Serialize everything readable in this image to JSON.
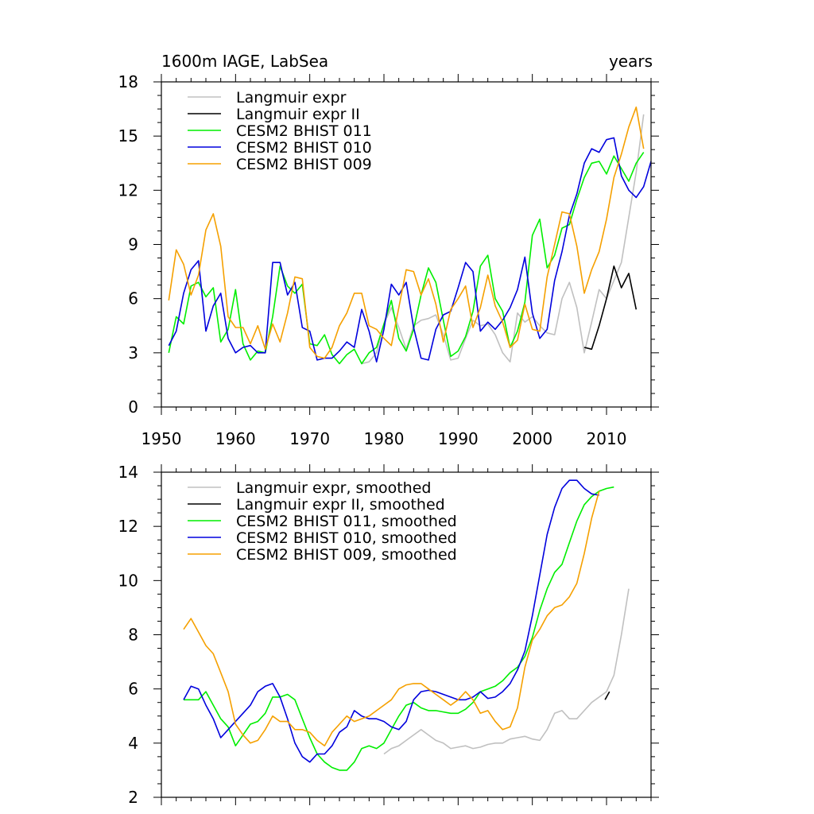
{
  "chart_data": [
    {
      "type": "line",
      "title_left": "1600m IAGE, LabSea",
      "title_right": "years",
      "xlim": [
        1950,
        2016
      ],
      "ylim": [
        0,
        18
      ],
      "xticks": [
        1950,
        1960,
        1970,
        1980,
        1990,
        2000,
        2010
      ],
      "yticks": [
        0,
        3,
        6,
        9,
        12,
        15,
        18
      ],
      "tick_labels_x": [
        "1950",
        "1960",
        "1970",
        "1980",
        "1990",
        "2000",
        "2010"
      ],
      "tick_labels_y": [
        "0",
        "3",
        "6",
        "9",
        "12",
        "15",
        "18"
      ],
      "series": [
        {
          "name": "Langmuir expr",
          "color": "#c0c0c0",
          "x0": 1977,
          "values": [
            2.4,
            2.5,
            3.0,
            4.6,
            5.5,
            4.4,
            3.2,
            4.5,
            4.8,
            4.9,
            5.1,
            4.0,
            2.6,
            2.7,
            3.8,
            4.8,
            4.5,
            4.6,
            4.0,
            3.0,
            2.5,
            5.2,
            4.7,
            5.0,
            4.5,
            4.1,
            4.0,
            6.0,
            6.9,
            5.5,
            3.0,
            4.7,
            6.5,
            6.0,
            7.0,
            8.0,
            10.5,
            13.0,
            16.2
          ]
        },
        {
          "name": "Langmuir expr II",
          "color": "#000000",
          "x0": 2007,
          "values": [
            3.3,
            3.2,
            4.5,
            6.0,
            7.8,
            6.6,
            7.4,
            5.4
          ]
        },
        {
          "name": "CESM2 BHIST 011",
          "color": "#00ee00",
          "x0": 1951,
          "values": [
            3.0,
            5.0,
            4.6,
            6.7,
            6.9,
            6.1,
            6.6,
            3.6,
            4.3,
            6.5,
            3.5,
            2.6,
            3.1,
            3.0,
            5.0,
            7.8,
            6.7,
            6.3,
            6.8,
            3.5,
            3.4,
            4.0,
            2.9,
            2.4,
            2.9,
            3.2,
            2.4,
            3.0,
            3.3,
            4.6,
            5.9,
            3.8,
            3.1,
            4.3,
            6.2,
            7.7,
            6.9,
            4.8,
            2.8,
            3.1,
            3.9,
            5.3,
            7.8,
            8.4,
            6.0,
            5.3,
            3.3,
            4.2,
            5.8,
            9.5,
            10.4,
            7.7,
            8.4,
            9.9,
            10.1,
            11.5,
            12.7,
            13.5,
            13.6,
            12.9,
            13.9,
            13.2,
            12.5,
            13.5,
            14.1
          ]
        },
        {
          "name": "CESM2 BHIST 010",
          "color": "#0000dd",
          "x0": 1951,
          "values": [
            3.4,
            4.2,
            6.3,
            7.6,
            8.1,
            4.2,
            5.6,
            6.3,
            3.8,
            3.0,
            3.3,
            3.4,
            3.0,
            3.0,
            8.0,
            8.0,
            6.2,
            6.9,
            4.4,
            4.2,
            2.6,
            2.7,
            2.7,
            3.1,
            3.6,
            3.3,
            5.4,
            4.2,
            2.5,
            4.3,
            6.8,
            6.2,
            6.9,
            4.4,
            2.7,
            2.6,
            4.3,
            5.1,
            5.3,
            6.6,
            8.0,
            7.5,
            4.2,
            4.7,
            4.3,
            4.8,
            5.5,
            6.5,
            8.3,
            5.2,
            3.8,
            4.3,
            7.0,
            8.6,
            10.6,
            11.8,
            13.5,
            14.3,
            14.1,
            14.8,
            14.9,
            12.8,
            12.0,
            11.6,
            12.2,
            13.6
          ]
        },
        {
          "name": "CESM2 BHIST 009",
          "color": "#f5a000",
          "x0": 1951,
          "values": [
            5.9,
            8.7,
            7.9,
            6.2,
            7.3,
            9.8,
            10.7,
            8.9,
            5.0,
            4.4,
            4.4,
            3.5,
            4.5,
            3.2,
            4.6,
            3.6,
            5.2,
            7.2,
            7.1,
            3.3,
            2.8,
            2.7,
            3.3,
            4.5,
            5.2,
            6.3,
            6.3,
            4.5,
            4.3,
            3.8,
            3.4,
            5.5,
            7.6,
            7.5,
            6.2,
            7.1,
            5.7,
            3.6,
            5.4,
            6.0,
            6.7,
            4.4,
            5.5,
            7.3,
            5.6,
            4.7,
            3.3,
            3.7,
            5.7,
            4.3,
            4.2,
            7.2,
            9.0,
            10.8,
            10.7,
            8.9,
            6.3,
            7.6,
            8.6,
            10.4,
            12.7,
            14.0,
            15.5,
            16.6,
            14.3
          ]
        }
      ]
    },
    {
      "type": "line",
      "xlim": [
        1950,
        2016
      ],
      "ylim": [
        2,
        14
      ],
      "yticks": [
        2,
        4,
        6,
        8,
        10,
        12,
        14
      ],
      "tick_labels_y": [
        "2",
        "4",
        "6",
        "8",
        "10",
        "12",
        "14"
      ],
      "series": [
        {
          "name": "Langmuir expr, smoothed",
          "color": "#c0c0c0",
          "x0": 1980,
          "values": [
            3.6,
            3.8,
            3.9,
            4.1,
            4.3,
            4.5,
            4.3,
            4.1,
            4.0,
            3.8,
            3.85,
            3.9,
            3.8,
            3.85,
            3.95,
            4.0,
            4.0,
            4.15,
            4.2,
            4.25,
            4.15,
            4.1,
            4.5,
            5.1,
            5.2,
            4.9,
            4.9,
            5.2,
            5.5,
            5.7,
            5.9,
            6.5,
            8.0,
            9.7
          ]
        },
        {
          "name": "Langmuir expr II, smoothed",
          "color": "#000000",
          "x0": 2009.8,
          "dx": 0.6,
          "values": [
            5.6,
            5.9
          ]
        },
        {
          "name": "CESM2 BHIST 011, smoothed",
          "color": "#00ee00",
          "x0": 1953,
          "values": [
            5.6,
            5.6,
            5.6,
            5.9,
            5.4,
            4.9,
            4.6,
            3.9,
            4.3,
            4.7,
            4.8,
            5.1,
            5.7,
            5.7,
            5.8,
            5.6,
            4.9,
            4.2,
            3.6,
            3.3,
            3.1,
            3.0,
            3.0,
            3.3,
            3.8,
            3.9,
            3.8,
            4.0,
            4.5,
            5.0,
            5.4,
            5.5,
            5.3,
            5.2,
            5.2,
            5.15,
            5.1,
            5.1,
            5.25,
            5.5,
            5.9,
            6.0,
            6.1,
            6.3,
            6.6,
            6.8,
            7.2,
            7.9,
            8.9,
            9.7,
            10.3,
            10.6,
            11.4,
            12.2,
            12.8,
            13.1,
            13.3,
            13.4,
            13.45
          ]
        },
        {
          "name": "CESM2 BHIST 010, smoothed",
          "color": "#0000dd",
          "x0": 1953,
          "values": [
            5.6,
            6.1,
            6.0,
            5.4,
            4.9,
            4.2,
            4.5,
            4.8,
            5.1,
            5.4,
            5.9,
            6.1,
            6.2,
            5.7,
            4.9,
            4.0,
            3.5,
            3.3,
            3.6,
            3.6,
            3.9,
            4.4,
            4.6,
            5.2,
            5.0,
            4.9,
            4.9,
            4.8,
            4.6,
            4.5,
            4.8,
            5.6,
            5.9,
            5.95,
            5.9,
            5.8,
            5.7,
            5.6,
            5.6,
            5.7,
            5.9,
            5.65,
            5.7,
            5.9,
            6.2,
            6.7,
            7.4,
            8.7,
            10.2,
            11.7,
            12.7,
            13.4,
            13.7,
            13.7,
            13.4,
            13.2,
            13.15
          ]
        },
        {
          "name": "CESM2 BHIST 009, smoothed",
          "color": "#f5a000",
          "x0": 1953,
          "values": [
            8.2,
            8.6,
            8.1,
            7.6,
            7.3,
            6.6,
            5.9,
            4.7,
            4.3,
            4.0,
            4.1,
            4.5,
            5.0,
            4.8,
            4.8,
            4.5,
            4.5,
            4.4,
            4.1,
            3.9,
            4.4,
            4.7,
            5.0,
            4.8,
            4.9,
            5.0,
            5.2,
            5.4,
            5.6,
            6.0,
            6.15,
            6.2,
            6.2,
            6.0,
            5.8,
            5.6,
            5.4,
            5.6,
            5.9,
            5.6,
            5.1,
            5.2,
            4.8,
            4.5,
            4.6,
            5.3,
            6.8,
            7.8,
            8.2,
            8.7,
            9.0,
            9.1,
            9.4,
            9.9,
            11.0,
            12.3,
            13.3
          ]
        }
      ]
    }
  ]
}
